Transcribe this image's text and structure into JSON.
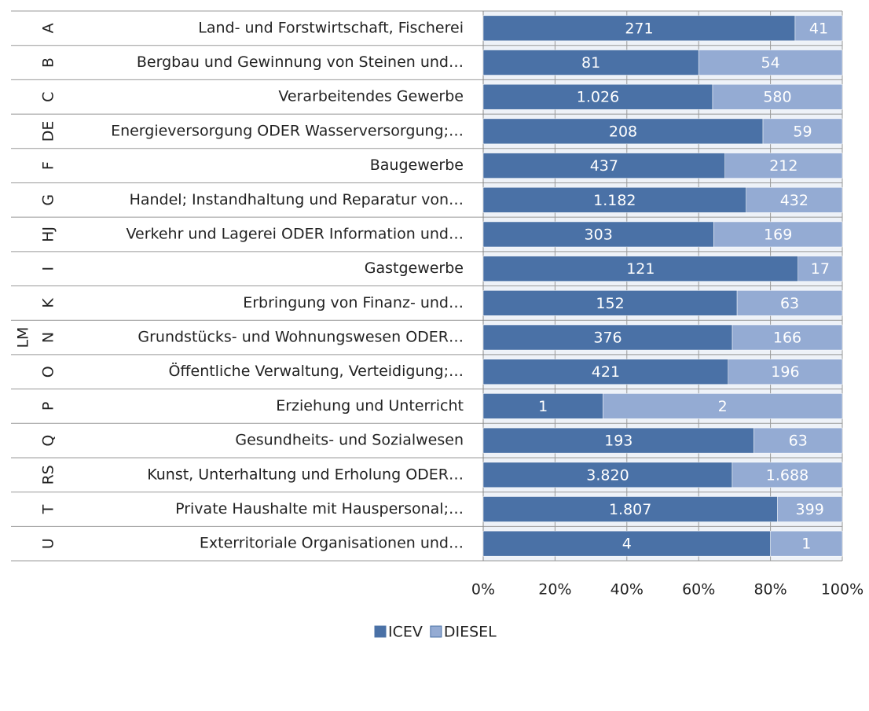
{
  "chart_data": {
    "type": "bar",
    "orientation": "horizontal",
    "stacking": "percent",
    "group_label": "LM",
    "codes": [
      "A",
      "B",
      "C",
      "DE",
      "F",
      "G",
      "HJ",
      "I",
      "K",
      "N",
      "O",
      "P",
      "Q",
      "RS",
      "T",
      "U"
    ],
    "categories": [
      "Land- und Forstwirtschaft, Fischerei",
      "Bergbau und Gewinnung von Steinen und…",
      "Verarbeitendes Gewerbe",
      "Energieversorgung ODER Wasserversorgung;…",
      "Baugewerbe",
      "Handel; Instandhaltung und Reparatur von…",
      "Verkehr und Lagerei ODER Information und…",
      "Gastgewerbe",
      "Erbringung von Finanz- und…",
      "Grundstücks- und Wohnungswesen ODER…",
      "Öffentliche Verwaltung, Verteidigung;…",
      "Erziehung und Unterricht",
      "Gesundheits- und Sozialwesen",
      "Kunst, Unterhaltung und Erholung ODER…",
      "Private Haushalte mit Hauspersonal;…",
      "Exterritoriale Organisationen und…"
    ],
    "series": [
      {
        "name": "ICEV",
        "color": "#4a71a6",
        "values": [
          271,
          81,
          1026,
          208,
          437,
          1182,
          303,
          121,
          152,
          376,
          421,
          1,
          193,
          3820,
          1807,
          4
        ],
        "value_labels": [
          "271",
          "81",
          "1.026",
          "208",
          "437",
          "1.182",
          "303",
          "121",
          "152",
          "376",
          "421",
          "1",
          "193",
          "3.820",
          "1.807",
          "4"
        ]
      },
      {
        "name": "DIESEL",
        "color": "#94abd3",
        "values": [
          41,
          54,
          580,
          59,
          212,
          432,
          169,
          17,
          63,
          166,
          196,
          2,
          63,
          1688,
          399,
          1
        ],
        "value_labels": [
          "41",
          "54",
          "580",
          "59",
          "212",
          "432",
          "169",
          "17",
          "63",
          "166",
          "196",
          "2",
          "63",
          "1.688",
          "399",
          "1"
        ]
      }
    ],
    "xlim": [
      0,
      100
    ],
    "xticks": [
      {
        "value": 0,
        "label": "0%"
      },
      {
        "value": 20,
        "label": "20%"
      },
      {
        "value": 40,
        "label": "40%"
      },
      {
        "value": 60,
        "label": "60%"
      },
      {
        "value": 80,
        "label": "80%"
      },
      {
        "value": 100,
        "label": "100%"
      }
    ],
    "grid": true,
    "legend": "bottom"
  }
}
